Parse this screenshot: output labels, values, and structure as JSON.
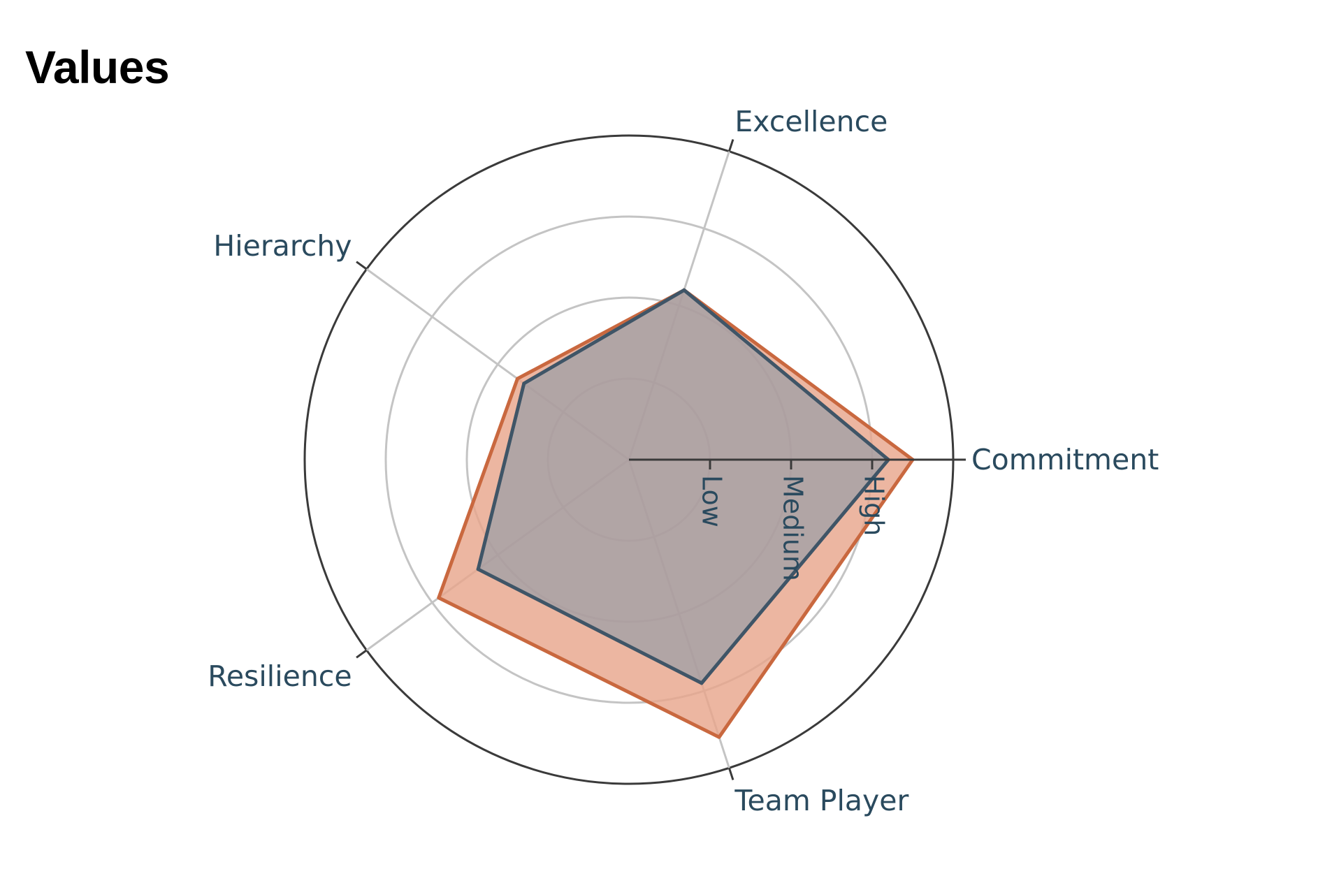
{
  "title": "Values",
  "chart_data": {
    "type": "radar",
    "title": "Values",
    "axes": [
      "Commitment",
      "Excellence",
      "Hierarchy",
      "Resilience",
      "Team Player"
    ],
    "radial_ticks": [
      "Low",
      "Medium",
      "High"
    ],
    "radial_range": [
      0,
      4
    ],
    "grid": true,
    "series": [
      {
        "values": [
          3.5,
          2.2,
          1.7,
          2.9,
          3.6
        ],
        "color": "#c9683f",
        "fill": "#e8a68c"
      },
      {
        "values": [
          3.2,
          2.2,
          1.6,
          2.3,
          2.9
        ],
        "color": "#3f5567",
        "fill": "#8a9aa8"
      }
    ]
  }
}
